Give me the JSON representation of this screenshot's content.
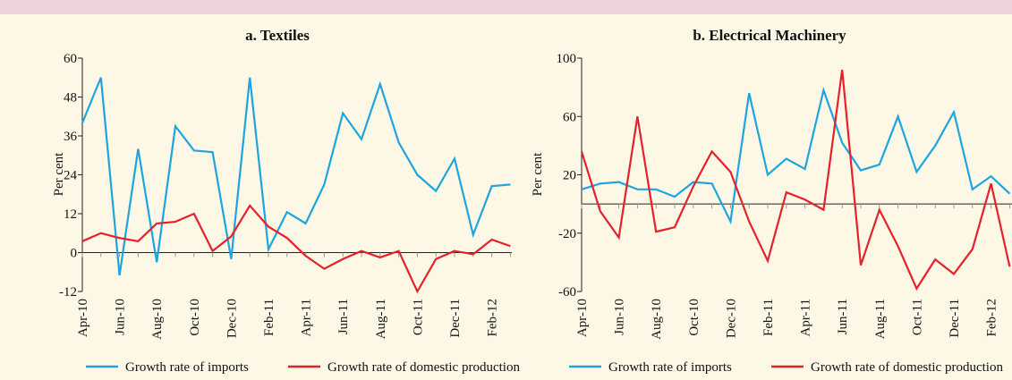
{
  "chart_data": [
    {
      "type": "line",
      "title": "a. Textiles",
      "ylabel": "Per cent",
      "categories": [
        "Apr-10",
        null,
        "Jun-10",
        null,
        "Aug-10",
        null,
        "Oct-10",
        null,
        "Dec-10",
        null,
        "Feb-11",
        null,
        "Apr-11",
        null,
        "Jun-11",
        null,
        "Aug-11",
        null,
        "Oct-11",
        null,
        "Dec-11",
        null,
        "Feb-12",
        null
      ],
      "series": [
        {
          "name": "Growth rate of imports",
          "color": "#1ea5e0",
          "values": [
            40,
            54,
            -7,
            32,
            -3,
            39,
            31.5,
            31,
            -2,
            54,
            1,
            12.5,
            9,
            21,
            43,
            35,
            52,
            34,
            24,
            19,
            29,
            5.5,
            20.5,
            21
          ]
        },
        {
          "name": "Growth rate of domestic production",
          "color": "#e3222b",
          "values": [
            3.5,
            6,
            4.5,
            3.5,
            9,
            9.5,
            12,
            0.5,
            5,
            14.5,
            8,
            4.5,
            -1,
            -5,
            -2,
            0.5,
            -1.5,
            0.5,
            -12,
            -2,
            0.5,
            -0.5,
            4,
            2
          ]
        }
      ],
      "ylim": [
        -12,
        60
      ],
      "yticks": [
        -12,
        0,
        12,
        24,
        36,
        48,
        60
      ]
    },
    {
      "type": "line",
      "title": "b. Electrical Machinery",
      "ylabel": "Per cent",
      "categories": [
        "Apr-10",
        null,
        "Jun-10",
        null,
        "Aug-10",
        null,
        "Oct-10",
        null,
        "Dec-10",
        null,
        "Feb-11",
        null,
        "Apr-11",
        null,
        "Jun-11",
        null,
        "Aug-11",
        null,
        "Oct-11",
        null,
        "Dec-11",
        null,
        "Feb-12",
        null
      ],
      "series": [
        {
          "name": "Growth rate of imports",
          "color": "#1ea5e0",
          "values": [
            10,
            14,
            15,
            10,
            10,
            5,
            15,
            14,
            -12,
            76,
            20,
            31,
            24,
            78,
            42,
            23,
            27,
            60,
            22,
            40,
            63,
            10,
            19,
            7
          ]
        },
        {
          "name": "Growth rate of domestic production",
          "color": "#e3222b",
          "values": [
            36,
            -5,
            -23,
            60,
            -19,
            -16,
            12,
            36,
            22,
            -12,
            -39,
            8,
            3,
            -4,
            92,
            -42,
            -4,
            -29,
            -58,
            -38,
            -48,
            -31,
            14,
            -43
          ]
        }
      ],
      "ylim": [
        -60,
        100
      ],
      "yticks": [
        -60,
        -20,
        20,
        60,
        100
      ]
    }
  ]
}
